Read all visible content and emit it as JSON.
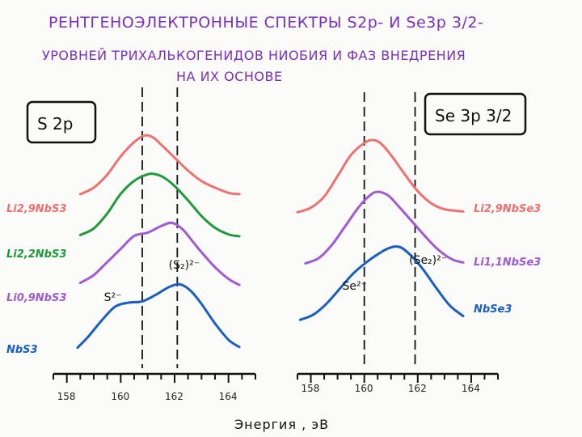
{
  "title": {
    "line1": "РЕНТГЕНОЭЛЕКТРОННЫЕ СПЕКТРЫ  S2p- И  Se3p 3/2-",
    "line2": "УРОВНЕЙ ТРИХАЛЬКОГЕНИДОВ НИОБИЯ И ФАЗ ВНЕДРЕНИЯ",
    "line3": "НА ИХ ОСНОВЕ"
  },
  "xlabel": "Энергия , эВ",
  "colors": {
    "red": "#f07070",
    "green": "#1e9a3a",
    "purple": "#a05ad2",
    "blue": "#1a5fbf",
    "title": "#7b2fbe"
  },
  "chart_data": [
    {
      "type": "line",
      "panel_label": "S 2p",
      "xlabel": "Энергия , эВ",
      "xlim": [
        157.5,
        165.0
      ],
      "xticks": [
        158,
        160,
        162,
        164
      ],
      "xtick_labels": [
        "158",
        "160",
        "162",
        "164"
      ],
      "vlines": [
        160.8,
        162.1
      ],
      "annotations": [
        {
          "text": "S²⁻",
          "x": 159.8
        },
        {
          "text": "(S₂)²⁻",
          "x": 162.2
        }
      ],
      "series": [
        {
          "name": "Li2,9NbS3",
          "color": "#f07070",
          "x": [
            158.5,
            159.0,
            159.5,
            160.0,
            160.5,
            160.9,
            161.2,
            161.5,
            162.0,
            162.5,
            163.0,
            163.5,
            164.0,
            164.4
          ],
          "y": [
            0.1,
            0.2,
            0.4,
            0.68,
            0.9,
            1.0,
            0.97,
            0.86,
            0.66,
            0.46,
            0.3,
            0.2,
            0.12,
            0.1
          ]
        },
        {
          "name": "Li2,2NbS3",
          "color": "#1e9a3a",
          "x": [
            158.5,
            159.0,
            159.5,
            160.0,
            160.5,
            161.0,
            161.3,
            161.6,
            162.0,
            162.5,
            163.0,
            163.5,
            164.0,
            164.4
          ],
          "y": [
            0.07,
            0.17,
            0.4,
            0.7,
            0.9,
            1.0,
            1.0,
            0.95,
            0.82,
            0.6,
            0.36,
            0.18,
            0.08,
            0.05
          ]
        },
        {
          "name": "Li0,9NbS3",
          "color": "#a05ad2",
          "x": [
            158.5,
            159.0,
            159.5,
            160.0,
            160.5,
            161.0,
            161.5,
            161.9,
            162.3,
            162.7,
            163.0,
            163.5,
            164.0,
            164.4
          ],
          "y": [
            0.08,
            0.2,
            0.4,
            0.6,
            0.8,
            0.85,
            0.95,
            1.0,
            0.9,
            0.7,
            0.55,
            0.32,
            0.14,
            0.05
          ]
        },
        {
          "name": "NbS3",
          "color": "#1a5fbf",
          "x": [
            158.4,
            158.8,
            159.3,
            159.8,
            160.3,
            160.8,
            161.3,
            161.8,
            162.2,
            162.6,
            163.0,
            163.5,
            164.0,
            164.4
          ],
          "y": [
            0.03,
            0.2,
            0.45,
            0.66,
            0.72,
            0.74,
            0.84,
            0.96,
            1.0,
            0.9,
            0.7,
            0.4,
            0.15,
            0.04
          ]
        }
      ]
    },
    {
      "type": "line",
      "panel_label": "Se 3p 3/2",
      "xlabel": "Энергия , эВ",
      "xlim": [
        157.5,
        165.0
      ],
      "xticks": [
        158,
        160,
        162,
        164
      ],
      "xtick_labels": [
        "158",
        "160",
        "162",
        "164"
      ],
      "vlines": [
        160.0,
        161.9
      ],
      "annotations": [
        {
          "text": "Se²⁻",
          "x": 159.6
        },
        {
          "text": "(Se₂)²⁻",
          "x": 162.1
        }
      ],
      "series": [
        {
          "name": "Li2,9NbSe3",
          "color": "#f07070",
          "x": [
            157.5,
            158.0,
            158.5,
            159.0,
            159.5,
            160.0,
            160.3,
            160.6,
            161.0,
            161.5,
            162.0,
            162.5,
            163.0,
            163.7
          ],
          "y": [
            0.04,
            0.1,
            0.25,
            0.52,
            0.8,
            0.96,
            1.0,
            0.96,
            0.8,
            0.55,
            0.32,
            0.16,
            0.08,
            0.05
          ]
        },
        {
          "name": "Li1,1NbSe3",
          "color": "#a05ad2",
          "x": [
            157.8,
            158.3,
            158.8,
            159.3,
            159.8,
            160.2,
            160.5,
            160.9,
            161.3,
            161.8,
            162.3,
            162.8,
            163.3,
            163.7
          ],
          "y": [
            0.05,
            0.12,
            0.3,
            0.55,
            0.8,
            0.95,
            1.0,
            0.95,
            0.8,
            0.6,
            0.4,
            0.22,
            0.1,
            0.06
          ]
        },
        {
          "name": "NbSe3",
          "color": "#1a5fbf",
          "x": [
            157.6,
            158.1,
            158.6,
            159.1,
            159.6,
            160.1,
            160.5,
            160.9,
            161.3,
            161.7,
            162.2,
            162.7,
            163.2,
            163.7
          ],
          "y": [
            0.03,
            0.1,
            0.25,
            0.45,
            0.65,
            0.8,
            0.9,
            0.98,
            1.0,
            0.9,
            0.7,
            0.45,
            0.22,
            0.08
          ]
        }
      ]
    }
  ]
}
